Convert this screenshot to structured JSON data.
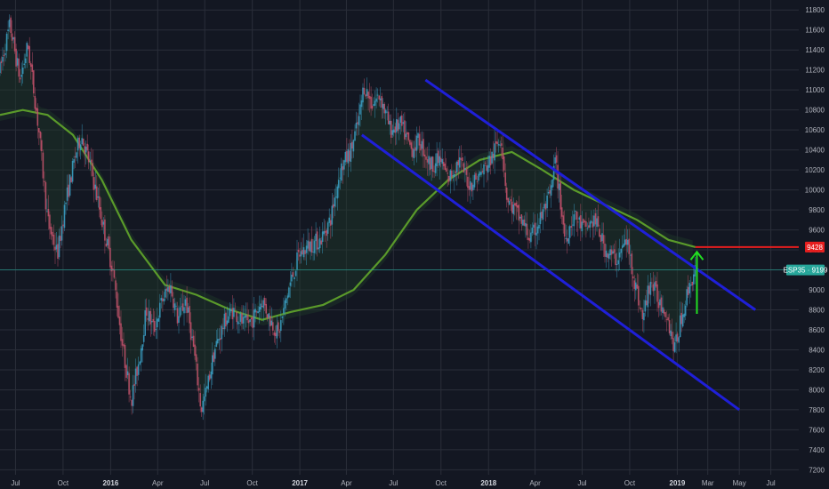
{
  "chart_data": {
    "type": "candlestick",
    "symbol": "ESP35",
    "last_price": 9199,
    "last_price_label": "ESP35 · 9199",
    "target_level": 9428,
    "target_label": "9428",
    "y_ticks": [
      11800,
      11600,
      11400,
      11200,
      11000,
      10800,
      10600,
      10400,
      10200,
      10000,
      9800,
      9600,
      9400,
      9200,
      9000,
      8800,
      8600,
      8400,
      8200,
      8000,
      7800,
      7600,
      7400,
      7200
    ],
    "ylim": [
      7150,
      11900
    ],
    "x_ticks": [
      {
        "label": "Jul",
        "date": "2015-07-01",
        "bold": false
      },
      {
        "label": "Oct",
        "date": "2015-10-01",
        "bold": false
      },
      {
        "label": "2016",
        "date": "2016-01-01",
        "bold": true
      },
      {
        "label": "Apr",
        "date": "2016-04-01",
        "bold": false
      },
      {
        "label": "Jul",
        "date": "2016-07-01",
        "bold": false
      },
      {
        "label": "Oct",
        "date": "2016-10-01",
        "bold": false
      },
      {
        "label": "2017",
        "date": "2017-01-01",
        "bold": true
      },
      {
        "label": "Apr",
        "date": "2017-04-01",
        "bold": false
      },
      {
        "label": "Jul",
        "date": "2017-07-01",
        "bold": false
      },
      {
        "label": "Oct",
        "date": "2017-10-01",
        "bold": false
      },
      {
        "label": "2018",
        "date": "2018-01-01",
        "bold": true
      },
      {
        "label": "Apr",
        "date": "2018-04-01",
        "bold": false
      },
      {
        "label": "Jul",
        "date": "2018-07-01",
        "bold": false
      },
      {
        "label": "Oct",
        "date": "2018-10-01",
        "bold": false
      },
      {
        "label": "2019",
        "date": "2019-01-01",
        "bold": true
      },
      {
        "label": "Mar",
        "date": "2019-03-01",
        "bold": false
      },
      {
        "label": "May",
        "date": "2019-05-01",
        "bold": false
      },
      {
        "label": "Jul",
        "date": "2019-07-01",
        "bold": false
      }
    ],
    "price_path": [
      [
        "2015-06-01",
        11200
      ],
      [
        "2015-06-20",
        11650
      ],
      [
        "2015-07-10",
        11100
      ],
      [
        "2015-07-25",
        11450
      ],
      [
        "2015-08-15",
        10600
      ],
      [
        "2015-09-01",
        9700
      ],
      [
        "2015-09-20",
        9350
      ],
      [
        "2015-10-05",
        9850
      ],
      [
        "2015-10-25",
        10350
      ],
      [
        "2015-11-05",
        10550
      ],
      [
        "2015-11-25",
        10200
      ],
      [
        "2015-12-15",
        9700
      ],
      [
        "2016-01-05",
        9200
      ],
      [
        "2016-01-25",
        8400
      ],
      [
        "2016-02-10",
        7900
      ],
      [
        "2016-02-25",
        8300
      ],
      [
        "2016-03-10",
        8800
      ],
      [
        "2016-03-25",
        8600
      ],
      [
        "2016-04-10",
        8900
      ],
      [
        "2016-04-25",
        9050
      ],
      [
        "2016-05-10",
        8700
      ],
      [
        "2016-05-25",
        8900
      ],
      [
        "2016-06-10",
        8400
      ],
      [
        "2016-06-24",
        7800
      ],
      [
        "2016-07-05",
        8000
      ],
      [
        "2016-07-20",
        8400
      ],
      [
        "2016-08-10",
        8700
      ],
      [
        "2016-08-25",
        8800
      ],
      [
        "2016-09-15",
        8650
      ],
      [
        "2016-10-01",
        8700
      ],
      [
        "2016-10-20",
        8900
      ],
      [
        "2016-11-05",
        8700
      ],
      [
        "2016-11-20",
        8550
      ],
      [
        "2016-12-10",
        9000
      ],
      [
        "2016-12-30",
        9350
      ],
      [
        "2017-01-20",
        9450
      ],
      [
        "2017-02-10",
        9500
      ],
      [
        "2017-03-01",
        9700
      ],
      [
        "2017-03-20",
        10200
      ],
      [
        "2017-04-10",
        10400
      ],
      [
        "2017-04-25",
        10700
      ],
      [
        "2017-05-05",
        11050
      ],
      [
        "2017-05-20",
        10850
      ],
      [
        "2017-06-05",
        10950
      ],
      [
        "2017-06-25",
        10600
      ],
      [
        "2017-07-15",
        10650
      ],
      [
        "2017-08-05",
        10400
      ],
      [
        "2017-08-20",
        10500
      ],
      [
        "2017-09-10",
        10250
      ],
      [
        "2017-09-30",
        10300
      ],
      [
        "2017-10-15",
        10100
      ],
      [
        "2017-11-05",
        10300
      ],
      [
        "2017-11-25",
        10050
      ],
      [
        "2017-12-15",
        10150
      ],
      [
        "2018-01-05",
        10300
      ],
      [
        "2018-01-25",
        10550
      ],
      [
        "2018-02-06",
        9900
      ],
      [
        "2018-02-20",
        9800
      ],
      [
        "2018-03-10",
        9650
      ],
      [
        "2018-03-23",
        9500
      ],
      [
        "2018-04-10",
        9700
      ],
      [
        "2018-05-01",
        9950
      ],
      [
        "2018-05-10",
        10300
      ],
      [
        "2018-05-29",
        9500
      ],
      [
        "2018-06-15",
        9750
      ],
      [
        "2018-07-05",
        9600
      ],
      [
        "2018-07-25",
        9700
      ],
      [
        "2018-08-15",
        9400
      ],
      [
        "2018-09-05",
        9300
      ],
      [
        "2018-09-25",
        9500
      ],
      [
        "2018-10-10",
        9100
      ],
      [
        "2018-10-26",
        8700
      ],
      [
        "2018-11-10",
        9100
      ],
      [
        "2018-11-25",
        8900
      ],
      [
        "2018-12-10",
        8800
      ],
      [
        "2018-12-27",
        8400
      ],
      [
        "2019-01-10",
        8750
      ],
      [
        "2019-01-25",
        9050
      ],
      [
        "2019-02-05",
        9199
      ]
    ],
    "moving_average": [
      [
        "2015-06-01",
        10750
      ],
      [
        "2015-07-15",
        10800
      ],
      [
        "2015-09-01",
        10750
      ],
      [
        "2015-10-20",
        10550
      ],
      [
        "2015-12-15",
        10100
      ],
      [
        "2016-02-10",
        9500
      ],
      [
        "2016-04-15",
        9050
      ],
      [
        "2016-06-15",
        8950
      ],
      [
        "2016-08-20",
        8800
      ],
      [
        "2016-10-20",
        8700
      ],
      [
        "2016-12-15",
        8780
      ],
      [
        "2017-02-15",
        8850
      ],
      [
        "2017-04-15",
        9000
      ],
      [
        "2017-06-15",
        9350
      ],
      [
        "2017-08-15",
        9800
      ],
      [
        "2017-10-15",
        10100
      ],
      [
        "2017-12-15",
        10300
      ],
      [
        "2018-02-15",
        10380
      ],
      [
        "2018-04-15",
        10200
      ],
      [
        "2018-06-15",
        10000
      ],
      [
        "2018-08-15",
        9850
      ],
      [
        "2018-10-15",
        9700
      ],
      [
        "2018-12-15",
        9500
      ],
      [
        "2019-02-05",
        9428
      ]
    ],
    "channel_upper": [
      [
        "2017-09-01",
        11100
      ],
      [
        "2019-06-01",
        8800
      ]
    ],
    "channel_lower": [
      [
        "2017-05-01",
        10550
      ],
      [
        "2019-05-01",
        7800
      ]
    ],
    "level_line": {
      "from": "2019-02-05",
      "to": "2019-08-20",
      "value": 9428
    },
    "arrow": {
      "date": "2019-02-08",
      "from": 8760,
      "to": 9380
    },
    "colors": {
      "background": "#131722",
      "grid": "#2a2e39",
      "channel": "#1f1fd8",
      "moving_average": "#5a9a2a",
      "level": "#e61e1e",
      "arrow": "#22dd22",
      "last_price": "#26a69a",
      "candle_up": "#3a9bc0",
      "candle_down": "#c0506a"
    }
  }
}
